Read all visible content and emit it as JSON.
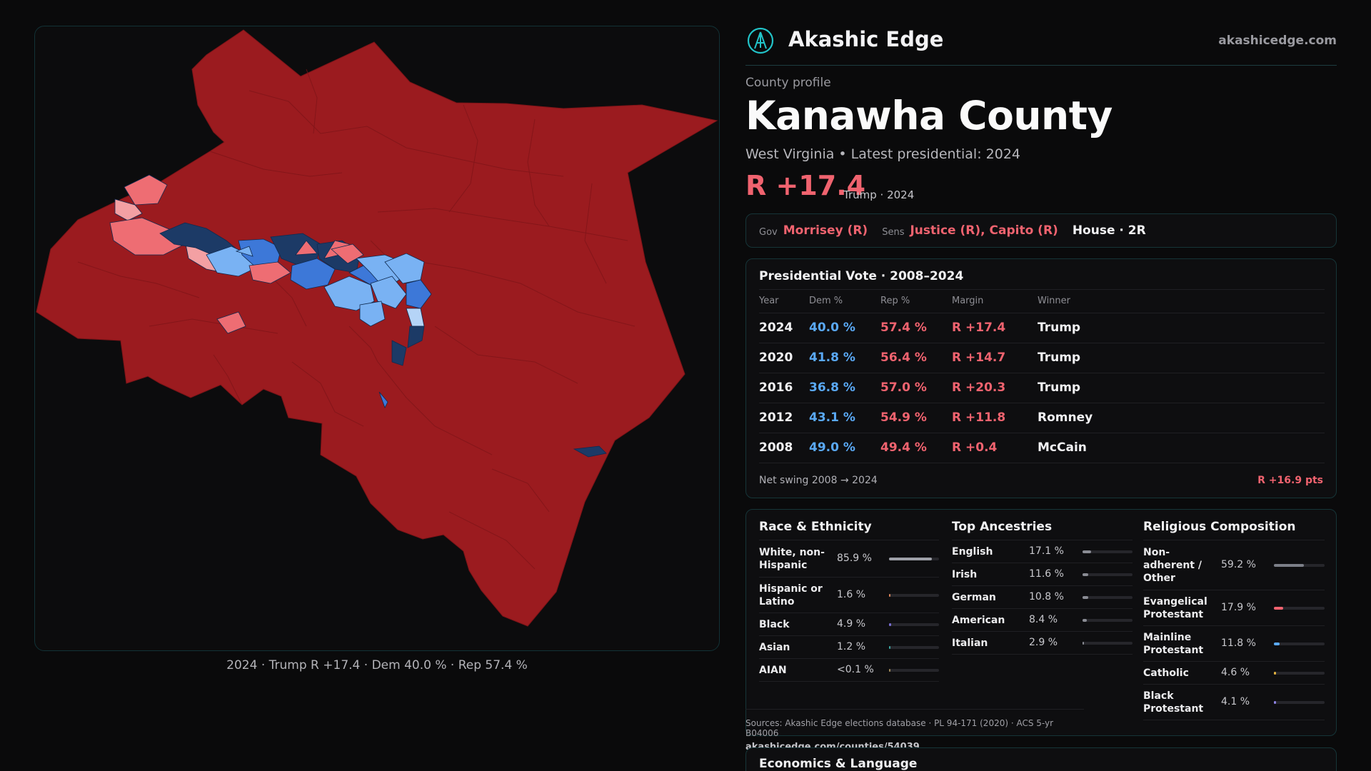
{
  "map": {
    "caption": "2024 · Trump R +17.4 · Dem 40.0 % · Rep 57.4 %",
    "colors": {
      "solid_red": "#9b1b1f",
      "light_red": "#ee6d73",
      "pale_red": "#f3a0a3",
      "dark_blue": "#1c3a66",
      "mid_blue": "#3d78d8",
      "light_blue": "#79b2f3",
      "pale_blue": "#b5d4f7"
    }
  },
  "brand": {
    "name": "Akashic Edge",
    "url": "akashicedge.com",
    "logo_icon": "akashic-logo-icon",
    "accent": "#22c4c9"
  },
  "profile": {
    "eyebrow": "County profile",
    "title": "Kanawha County",
    "subtitle": "West Virginia • Latest presidential: 2024",
    "margin": "R +17.4",
    "margin_sub": "Trump · 2024",
    "accent_red": "#f0636f",
    "accent_blue": "#5aa9f5"
  },
  "officials": {
    "gov_key": "Gov",
    "gov": "Morrisey (R)",
    "sens_key": "Sens",
    "sens": "Justice (R), Capito (R)",
    "house": "House · 2R"
  },
  "presidential": {
    "title": "Presidential Vote · 2008–2024",
    "headers": {
      "year": "Year",
      "dem": "Dem %",
      "rep": "Rep %",
      "margin": "Margin",
      "winner": "Winner"
    },
    "rows": [
      {
        "year": "2024",
        "dem": "40.0 %",
        "rep": "57.4 %",
        "margin": "R +17.4",
        "winner": "Trump"
      },
      {
        "year": "2020",
        "dem": "41.8 %",
        "rep": "56.4 %",
        "margin": "R +14.7",
        "winner": "Trump"
      },
      {
        "year": "2016",
        "dem": "36.8 %",
        "rep": "57.0 %",
        "margin": "R +20.3",
        "winner": "Trump"
      },
      {
        "year": "2012",
        "dem": "43.1 %",
        "rep": "54.9 %",
        "margin": "R +11.8",
        "winner": "Romney"
      },
      {
        "year": "2008",
        "dem": "49.0 %",
        "rep": "49.4 %",
        "margin": "R +0.4",
        "winner": "McCain"
      }
    ],
    "swing_label": "Net swing 2008 → 2024",
    "swing_value": "R +16.9 pts"
  },
  "race": {
    "title": "Race & Ethnicity",
    "items": [
      {
        "label": "White, non-Hispanic",
        "value": "85.9 %",
        "pct": 85.9,
        "color": "#9ea0a8"
      },
      {
        "label": "Hispanic or Latino",
        "value": "1.6 %",
        "pct": 1.6,
        "color": "#d9845a"
      },
      {
        "label": "Black",
        "value": "4.9 %",
        "pct": 4.9,
        "color": "#7a6fd6"
      },
      {
        "label": "Asian",
        "value": "1.2 %",
        "pct": 1.2,
        "color": "#3aa6a1"
      },
      {
        "label": "AIAN",
        "value": "<0.1 %",
        "pct": 0.05,
        "color": "#a08a5a"
      }
    ]
  },
  "ancestry": {
    "title": "Top Ancestries",
    "items": [
      {
        "label": "English",
        "value": "17.1 %",
        "pct": 17.1,
        "color": "#8a8c94"
      },
      {
        "label": "Irish",
        "value": "11.6 %",
        "pct": 11.6,
        "color": "#8a8c94"
      },
      {
        "label": "German",
        "value": "10.8 %",
        "pct": 10.8,
        "color": "#8a8c94"
      },
      {
        "label": "American",
        "value": "8.4 %",
        "pct": 8.4,
        "color": "#8a8c94"
      },
      {
        "label": "Italian",
        "value": "2.9 %",
        "pct": 2.9,
        "color": "#8a8c94"
      }
    ]
  },
  "religion": {
    "title": "Religious Composition",
    "items": [
      {
        "label": "Non-adherent / Other",
        "value": "59.2 %",
        "pct": 59.2,
        "color": "#7c7f88"
      },
      {
        "label": "Evangelical Protestant",
        "value": "17.9 %",
        "pct": 17.9,
        "color": "#f0636f"
      },
      {
        "label": "Mainline Protestant",
        "value": "11.8 %",
        "pct": 11.8,
        "color": "#5aa9f5"
      },
      {
        "label": "Catholic",
        "value": "4.6 %",
        "pct": 4.6,
        "color": "#e3b341"
      },
      {
        "label": "Black Protestant",
        "value": "4.1 %",
        "pct": 4.1,
        "color": "#8f83e6"
      }
    ]
  },
  "sources": {
    "line": "Sources: Akashic Edge elections database · PL 94-171 (2020) · ACS 5-yr B04006",
    "url": "akashicedge.com/counties/54039"
  },
  "economics": {
    "title": "Economics & Language"
  }
}
